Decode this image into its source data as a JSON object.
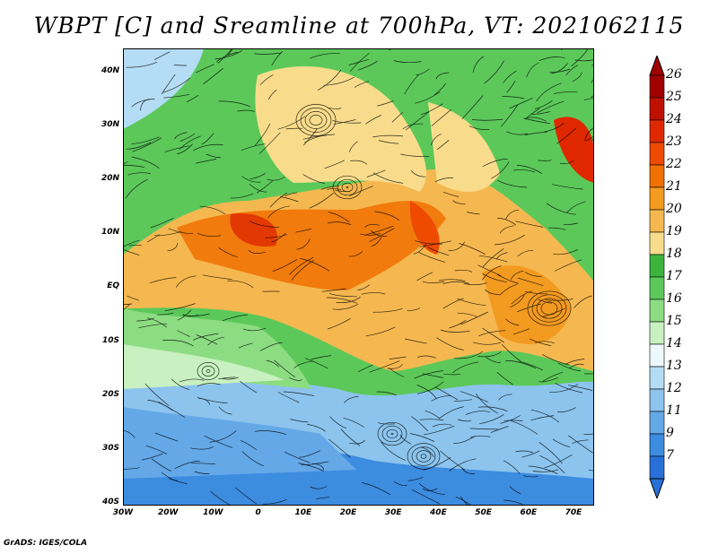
{
  "title": "WBPT [C] and Sreamline at 700hPa, VT: 2021062115",
  "credit": "GrADS: IGES/COLA",
  "lat_labels": [
    "40N",
    "30N",
    "20N",
    "10N",
    "EQ",
    "10S",
    "20S",
    "30S",
    "40S"
  ],
  "lon_labels": [
    "30W",
    "20W",
    "10W",
    "0",
    "10E",
    "20E",
    "30E",
    "40E",
    "50E",
    "60E",
    "70E"
  ],
  "colorbar": {
    "labels": [
      "26",
      "25",
      "24",
      "23",
      "22",
      "21",
      "20",
      "19",
      "18",
      "17",
      "16",
      "15",
      "14",
      "13",
      "12",
      "11",
      "9",
      "7"
    ],
    "colors": [
      "#a00000",
      "#c01000",
      "#e02800",
      "#ee4a00",
      "#f07000",
      "#f39a20",
      "#f5b850",
      "#f8dc8c",
      "#3cb43c",
      "#5cc85a",
      "#8cdc82",
      "#c8f0c0",
      "#ecf8fc",
      "#b4dcf4",
      "#8cc4ee",
      "#64a8e8",
      "#3c8ce0",
      "#2870d8"
    ]
  }
}
